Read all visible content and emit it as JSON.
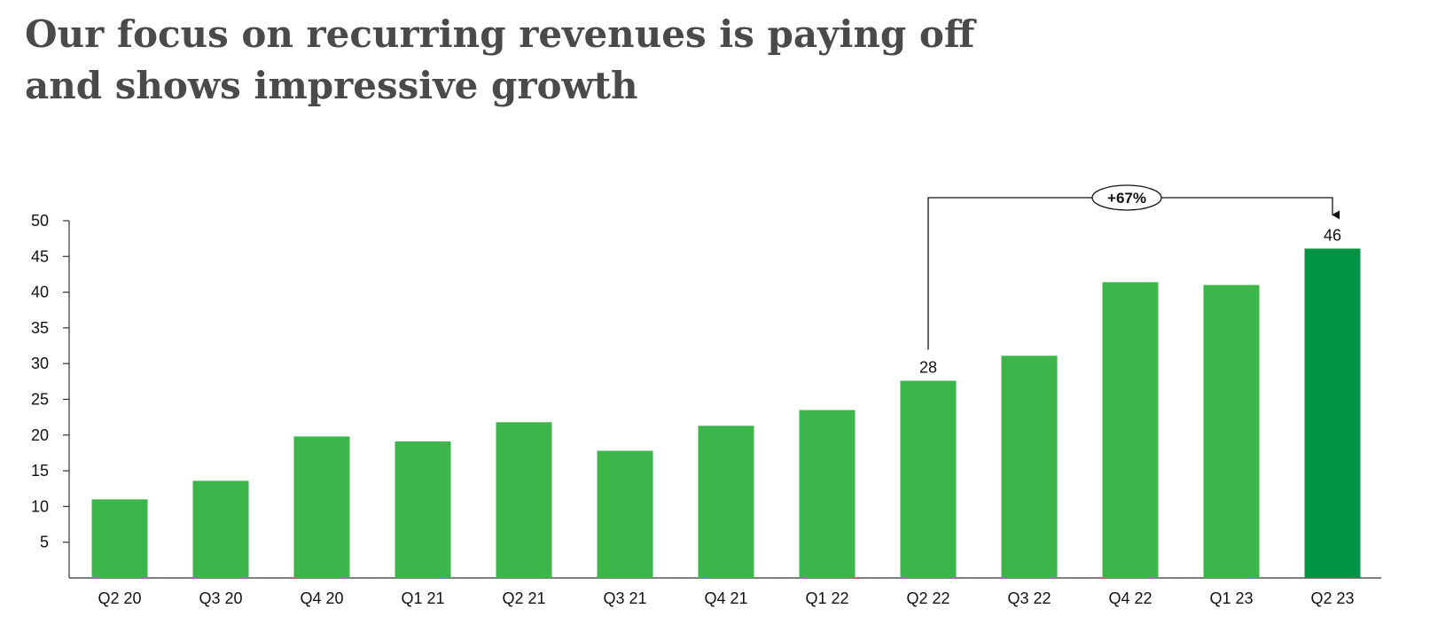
{
  "title": {
    "line1": "Our focus on recurring revenues is paying off",
    "line2": "and shows impressive growth"
  },
  "colors": {
    "bar": "#3cb54a",
    "bar_highlight": "#009444",
    "axis": "#333333",
    "text": "#111111",
    "title": "#4a4a4a"
  },
  "chart_data": {
    "type": "bar",
    "title": "",
    "xlabel": "",
    "ylabel": "",
    "categories": [
      "Q2 20",
      "Q3 20",
      "Q4 20",
      "Q1 21",
      "Q2 21",
      "Q3 21",
      "Q4 21",
      "Q1 22",
      "Q2 22",
      "Q3 22",
      "Q4 22",
      "Q1 23",
      "Q2 23"
    ],
    "values": [
      11,
      13.6,
      19.8,
      19.1,
      21.8,
      17.8,
      21.3,
      23.5,
      27.6,
      31.1,
      41.4,
      41.0,
      46.1
    ],
    "highlight_index": 12,
    "ylim": [
      0,
      50
    ],
    "yticks": [
      5,
      10,
      15,
      20,
      25,
      30,
      35,
      40,
      45,
      50
    ],
    "grid": false,
    "legend": "none",
    "data_labels": [
      {
        "index": 8,
        "text": "28"
      },
      {
        "index": 12,
        "text": "46"
      }
    ],
    "annotation": {
      "from_index": 8,
      "to_index": 12,
      "text": "+67%"
    }
  }
}
